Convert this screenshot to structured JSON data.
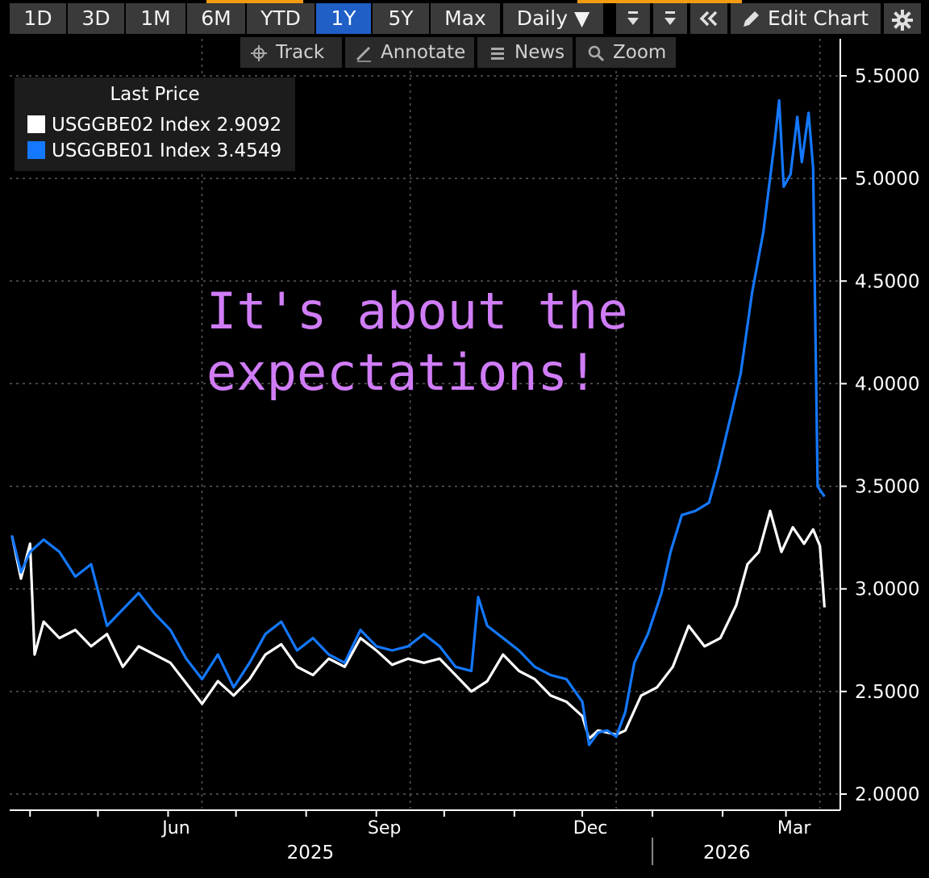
{
  "toolbar": {
    "ranges": [
      "1D",
      "3D",
      "1M",
      "6M",
      "YTD",
      "1Y",
      "5Y",
      "Max"
    ],
    "active_range": "1Y",
    "frequency": "Daily ▼",
    "edit_chart": "Edit Chart"
  },
  "subtoolbar": {
    "track": "Track",
    "annotate": "Annotate",
    "news": "News",
    "zoom": "Zoom"
  },
  "colors": {
    "background": "#000000",
    "series1": "#ffffff",
    "series2": "#1478ff",
    "annotation": "#d07cf7",
    "active_button": "#1f5fc6"
  },
  "annotation": {
    "line1": "It's about the",
    "line2": "expectations!"
  },
  "chart_data": {
    "type": "line",
    "legend_title": "Last Price",
    "legend_placement": "top-left",
    "grid": true,
    "ylim": [
      2.0,
      5.5
    ],
    "yticks": [
      "5.5000",
      "5.0000",
      "4.5000",
      "4.0000",
      "3.5000",
      "3.0000",
      "2.5000",
      "2.0000"
    ],
    "ytick_values": [
      5.5,
      5.0,
      4.5,
      4.0,
      3.5,
      3.0,
      2.5,
      2.0
    ],
    "x_start": "2025-03-23",
    "x_end": "2026-03-25",
    "xticks_major": [
      {
        "label": "Jun",
        "date": "2025-06-01"
      },
      {
        "label": "Sep",
        "date": "2025-09-01"
      },
      {
        "label": "Dec",
        "date": "2025-12-01"
      },
      {
        "label": "Mar",
        "date": "2026-03-01"
      }
    ],
    "xticks_minor": [
      "2025-04-01",
      "2025-05-01",
      "2025-06-01",
      "2025-07-01",
      "2025-08-01",
      "2025-09-01",
      "2025-10-01",
      "2025-11-01",
      "2025-12-01",
      "2026-01-01",
      "2026-02-01",
      "2026-03-01"
    ],
    "years": [
      {
        "label": "2025",
        "date": "2025-08-10"
      },
      {
        "label": "2026",
        "date": "2026-02-10"
      }
    ],
    "year_divider": "2026-01-01",
    "series": [
      {
        "name": "USGGBE02 Index",
        "last": "2.9092",
        "color": "#ffffff",
        "points": [
          [
            "2025-03-24",
            3.26
          ],
          [
            "2025-03-28",
            3.05
          ],
          [
            "2025-04-01",
            3.22
          ],
          [
            "2025-04-03",
            2.68
          ],
          [
            "2025-04-07",
            2.84
          ],
          [
            "2025-04-14",
            2.76
          ],
          [
            "2025-04-21",
            2.8
          ],
          [
            "2025-04-28",
            2.72
          ],
          [
            "2025-05-05",
            2.78
          ],
          [
            "2025-05-12",
            2.62
          ],
          [
            "2025-05-19",
            2.72
          ],
          [
            "2025-05-26",
            2.68
          ],
          [
            "2025-06-02",
            2.64
          ],
          [
            "2025-06-09",
            2.54
          ],
          [
            "2025-06-16",
            2.44
          ],
          [
            "2025-06-23",
            2.55
          ],
          [
            "2025-06-30",
            2.48
          ],
          [
            "2025-07-07",
            2.56
          ],
          [
            "2025-07-14",
            2.68
          ],
          [
            "2025-07-21",
            2.73
          ],
          [
            "2025-07-28",
            2.62
          ],
          [
            "2025-08-04",
            2.58
          ],
          [
            "2025-08-11",
            2.66
          ],
          [
            "2025-08-18",
            2.62
          ],
          [
            "2025-08-25",
            2.76
          ],
          [
            "2025-09-01",
            2.7
          ],
          [
            "2025-09-08",
            2.63
          ],
          [
            "2025-09-15",
            2.66
          ],
          [
            "2025-09-22",
            2.64
          ],
          [
            "2025-09-29",
            2.66
          ],
          [
            "2025-10-06",
            2.58
          ],
          [
            "2025-10-13",
            2.5
          ],
          [
            "2025-10-20",
            2.55
          ],
          [
            "2025-10-27",
            2.68
          ],
          [
            "2025-11-03",
            2.6
          ],
          [
            "2025-11-10",
            2.56
          ],
          [
            "2025-11-17",
            2.48
          ],
          [
            "2025-11-24",
            2.45
          ],
          [
            "2025-12-01",
            2.38
          ],
          [
            "2025-12-04",
            2.27
          ],
          [
            "2025-12-08",
            2.31
          ],
          [
            "2025-12-12",
            2.3
          ],
          [
            "2025-12-16",
            2.29
          ],
          [
            "2025-12-20",
            2.31
          ],
          [
            "2025-12-27",
            2.48
          ],
          [
            "2026-01-03",
            2.52
          ],
          [
            "2026-01-10",
            2.62
          ],
          [
            "2026-01-17",
            2.82
          ],
          [
            "2026-01-24",
            2.72
          ],
          [
            "2026-01-31",
            2.76
          ],
          [
            "2026-02-07",
            2.92
          ],
          [
            "2026-02-12",
            3.12
          ],
          [
            "2026-02-17",
            3.18
          ],
          [
            "2026-02-22",
            3.38
          ],
          [
            "2026-02-27",
            3.18
          ],
          [
            "2026-03-04",
            3.3
          ],
          [
            "2026-03-09",
            3.22
          ],
          [
            "2026-03-13",
            3.29
          ],
          [
            "2026-03-16",
            3.21
          ],
          [
            "2026-03-18",
            2.91
          ]
        ]
      },
      {
        "name": "USGGBE01 Index",
        "last": "3.4549",
        "color": "#1478ff",
        "points": [
          [
            "2025-03-24",
            3.26
          ],
          [
            "2025-03-28",
            3.08
          ],
          [
            "2025-04-01",
            3.18
          ],
          [
            "2025-04-07",
            3.24
          ],
          [
            "2025-04-14",
            3.18
          ],
          [
            "2025-04-21",
            3.06
          ],
          [
            "2025-04-28",
            3.12
          ],
          [
            "2025-05-05",
            2.82
          ],
          [
            "2025-05-12",
            2.9
          ],
          [
            "2025-05-19",
            2.98
          ],
          [
            "2025-05-26",
            2.88
          ],
          [
            "2025-06-02",
            2.8
          ],
          [
            "2025-06-09",
            2.66
          ],
          [
            "2025-06-16",
            2.56
          ],
          [
            "2025-06-23",
            2.68
          ],
          [
            "2025-06-30",
            2.52
          ],
          [
            "2025-07-07",
            2.64
          ],
          [
            "2025-07-14",
            2.78
          ],
          [
            "2025-07-21",
            2.84
          ],
          [
            "2025-07-28",
            2.7
          ],
          [
            "2025-08-04",
            2.76
          ],
          [
            "2025-08-11",
            2.68
          ],
          [
            "2025-08-18",
            2.64
          ],
          [
            "2025-08-25",
            2.8
          ],
          [
            "2025-09-01",
            2.72
          ],
          [
            "2025-09-08",
            2.7
          ],
          [
            "2025-09-15",
            2.72
          ],
          [
            "2025-09-22",
            2.78
          ],
          [
            "2025-09-29",
            2.72
          ],
          [
            "2025-10-06",
            2.62
          ],
          [
            "2025-10-13",
            2.6
          ],
          [
            "2025-10-16",
            2.96
          ],
          [
            "2025-10-20",
            2.82
          ],
          [
            "2025-10-27",
            2.76
          ],
          [
            "2025-11-03",
            2.7
          ],
          [
            "2025-11-10",
            2.62
          ],
          [
            "2025-11-17",
            2.58
          ],
          [
            "2025-11-24",
            2.56
          ],
          [
            "2025-12-01",
            2.45
          ],
          [
            "2025-12-04",
            2.24
          ],
          [
            "2025-12-08",
            2.3
          ],
          [
            "2025-12-12",
            2.31
          ],
          [
            "2025-12-16",
            2.28
          ],
          [
            "2025-12-20",
            2.4
          ],
          [
            "2025-12-24",
            2.64
          ],
          [
            "2025-12-30",
            2.78
          ],
          [
            "2026-01-05",
            2.98
          ],
          [
            "2026-01-09",
            3.18
          ],
          [
            "2026-01-14",
            3.36
          ],
          [
            "2026-01-20",
            3.38
          ],
          [
            "2026-01-26",
            3.42
          ],
          [
            "2026-01-30",
            3.58
          ],
          [
            "2026-02-05",
            3.86
          ],
          [
            "2026-02-09",
            4.05
          ],
          [
            "2026-02-14",
            4.44
          ],
          [
            "2026-02-19",
            4.74
          ],
          [
            "2026-02-24",
            5.18
          ],
          [
            "2026-02-26",
            5.38
          ],
          [
            "2026-02-28",
            4.96
          ],
          [
            "2026-03-03",
            5.02
          ],
          [
            "2026-03-06",
            5.3
          ],
          [
            "2026-03-08",
            5.08
          ],
          [
            "2026-03-11",
            5.32
          ],
          [
            "2026-03-13",
            5.05
          ],
          [
            "2026-03-15",
            3.5
          ],
          [
            "2026-03-18",
            3.45
          ]
        ]
      }
    ]
  }
}
